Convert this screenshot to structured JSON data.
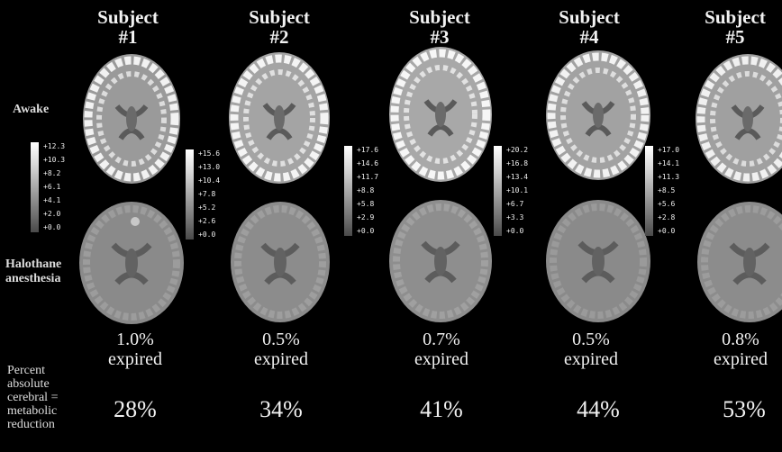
{
  "figure": {
    "row_labels": {
      "awake": "Awake",
      "halothane_line1": "Halothane",
      "halothane_line2": "anesthesia"
    },
    "metric_label": [
      "Percent",
      "absolute",
      "cerebral =",
      "metabolic",
      "reduction"
    ],
    "subjects": [
      {
        "title_line1": "Subject",
        "title_line2": "#1",
        "scale": [
          "+12.3",
          "+10.3",
          "+8.2",
          "+6.1",
          "+4.1",
          "+2.0",
          "+0.0"
        ],
        "concentration": "1.0%",
        "expired": "expired",
        "reduction": "28%"
      },
      {
        "title_line1": "Subject",
        "title_line2": "#2",
        "scale": [
          "+15.6",
          "+13.0",
          "+10.4",
          "+7.8",
          "+5.2",
          "+2.6",
          "+0.0"
        ],
        "concentration": "0.5%",
        "expired": "expired",
        "reduction": "34%"
      },
      {
        "title_line1": "Subject",
        "title_line2": "#3",
        "scale": [
          "+17.6",
          "+14.6",
          "+11.7",
          "+8.8",
          "+5.8",
          "+2.9",
          "+0.0"
        ],
        "concentration": "0.7%",
        "expired": "expired",
        "reduction": "41%"
      },
      {
        "title_line1": "Subject",
        "title_line2": "#4",
        "scale": [
          "+20.2",
          "+16.8",
          "+13.4",
          "+10.1",
          "+6.7",
          "+3.3",
          "+0.0"
        ],
        "concentration": "0.5%",
        "expired": "expired",
        "reduction": "44%"
      },
      {
        "title_line1": "Subject",
        "title_line2": "#5",
        "scale": [
          "+17.0",
          "+14.1",
          "+11.3",
          "+8.5",
          "+5.6",
          "+2.8",
          "+0.0"
        ],
        "concentration": "0.8%",
        "expired": "expired",
        "reduction": "53%"
      }
    ]
  }
}
